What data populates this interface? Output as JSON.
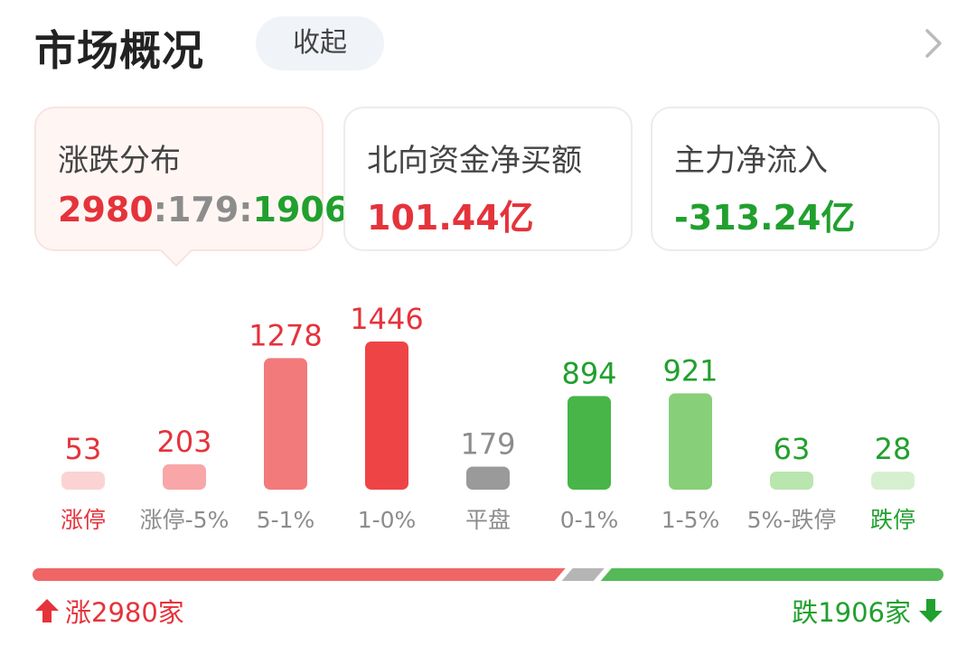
{
  "header": {
    "title": "市场概况",
    "collapse_label": "收起",
    "more_icon": "chevron-right-icon"
  },
  "cards": [
    {
      "label": "涨跌分布",
      "up": "2980",
      "sep1": ":",
      "flat": "179",
      "sep2": ":",
      "down": "1906"
    },
    {
      "label": "北向资金净买额",
      "value": "101.44亿"
    },
    {
      "label": "主力净流入",
      "value": "-313.24亿"
    }
  ],
  "chart_data": {
    "type": "bar",
    "categories": [
      "涨停",
      "涨停-5%",
      "5-1%",
      "1-0%",
      "平盘",
      "0-1%",
      "1-5%",
      "5%-跌停",
      "跌停"
    ],
    "values": [
      53,
      203,
      1278,
      1446,
      179,
      894,
      921,
      63,
      28
    ],
    "colors": [
      "#fbd3d3",
      "#f8a6a8",
      "#f27a7b",
      "#ee4446",
      "#9a9a9a",
      "#47b548",
      "#88cf79",
      "#b9e5ae",
      "#d6f0cf"
    ],
    "value_colors": [
      "#e5333b",
      "#e5333b",
      "#e5333b",
      "#e5333b",
      "#8c8c8c",
      "#21a02e",
      "#21a02e",
      "#21a02e",
      "#21a02e"
    ],
    "label_colors": [
      "#e5333b",
      "#8c8c8c",
      "#8c8c8c",
      "#8c8c8c",
      "#8c8c8c",
      "#8c8c8c",
      "#8c8c8c",
      "#8c8c8c",
      "#21a02e"
    ]
  },
  "summary": {
    "up_count": 2980,
    "flat_count": 179,
    "down_count": 1906,
    "up_text": "涨2980家",
    "down_text": "跌1906家",
    "up_color": "#f06566",
    "flat_color": "#b5b5b5",
    "down_color": "#54b956"
  }
}
